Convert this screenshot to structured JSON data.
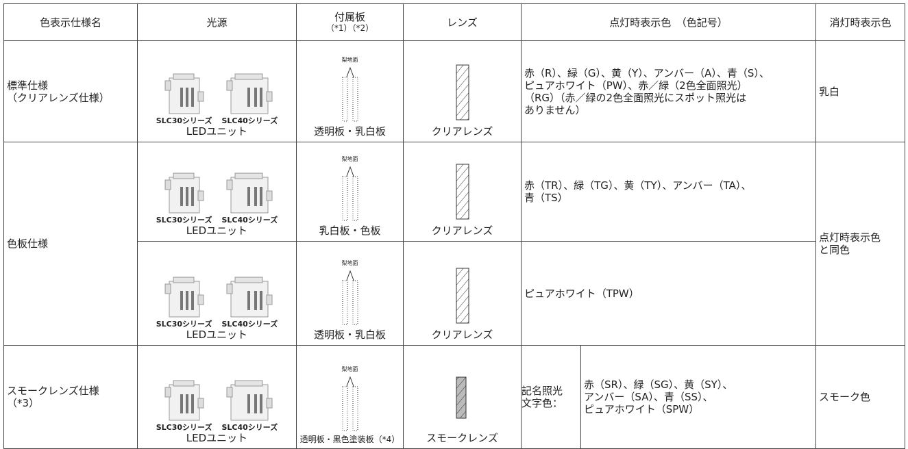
{
  "header": {
    "spec": "色表示仕様名",
    "source": "光源",
    "plate": "付属板",
    "plate_note": "（*1）（*2）",
    "lens": "レンズ",
    "on_color": "点灯時表示色　（色記号）",
    "off_color": "消灯時表示色"
  },
  "rows": [
    {
      "spec": "標準仕様\n（クリアレンズ仕様）",
      "off": "乳白",
      "variants": [
        {
          "models": [
            "SLC30シリーズ",
            "SLC40シリーズ"
          ],
          "source": "LEDユニット",
          "surface": "梨地面",
          "plate": "透明板・乳白板",
          "lens": "クリアレンズ",
          "colors": "赤（R）、緑（G）、黄（Y）、アンバー（A）、青（S）、\nピュアホワイト（PW）、赤／緑（2色全面照光）\n（RG）（赤／緑の2色全面照光にスポット照光は\nありません）"
        }
      ]
    },
    {
      "spec": "色板仕様",
      "off": "点灯時表示色\nと同色",
      "variants": [
        {
          "models": [
            "SLC30シリーズ",
            "SLC40シリーズ"
          ],
          "source": "LEDユニット",
          "surface": "梨地面",
          "plate": "乳白板・色板",
          "lens": "クリアレンズ",
          "colors": "赤（TR）、緑（TG）、黄（TY）、アンバー（TA）、\n青（TS）"
        },
        {
          "models": [
            "SLC30シリーズ",
            "SLC40シリーズ"
          ],
          "source": "LEDユニット",
          "surface": "梨地面",
          "plate": "透明板・乳白板",
          "lens": "クリアレンズ",
          "colors": "ピュアホワイト（TPW）"
        }
      ]
    },
    {
      "spec": "スモークレンズ仕様\n（*3）",
      "off": "スモーク色",
      "variants": [
        {
          "models": [
            "SLC30シリーズ",
            "SLC40シリーズ"
          ],
          "source": "LEDユニット",
          "surface": "梨地面",
          "plate": "透明板・黒色塗装板（*4）",
          "lens": "スモークレンズ",
          "colors_label": "記名照光\n文字色：",
          "colors": "赤（SR）、緑（SG）、黄（SY）、\nアンバー（SA）、青（SS）、\nピュアホワイト（SPW）"
        }
      ]
    }
  ]
}
